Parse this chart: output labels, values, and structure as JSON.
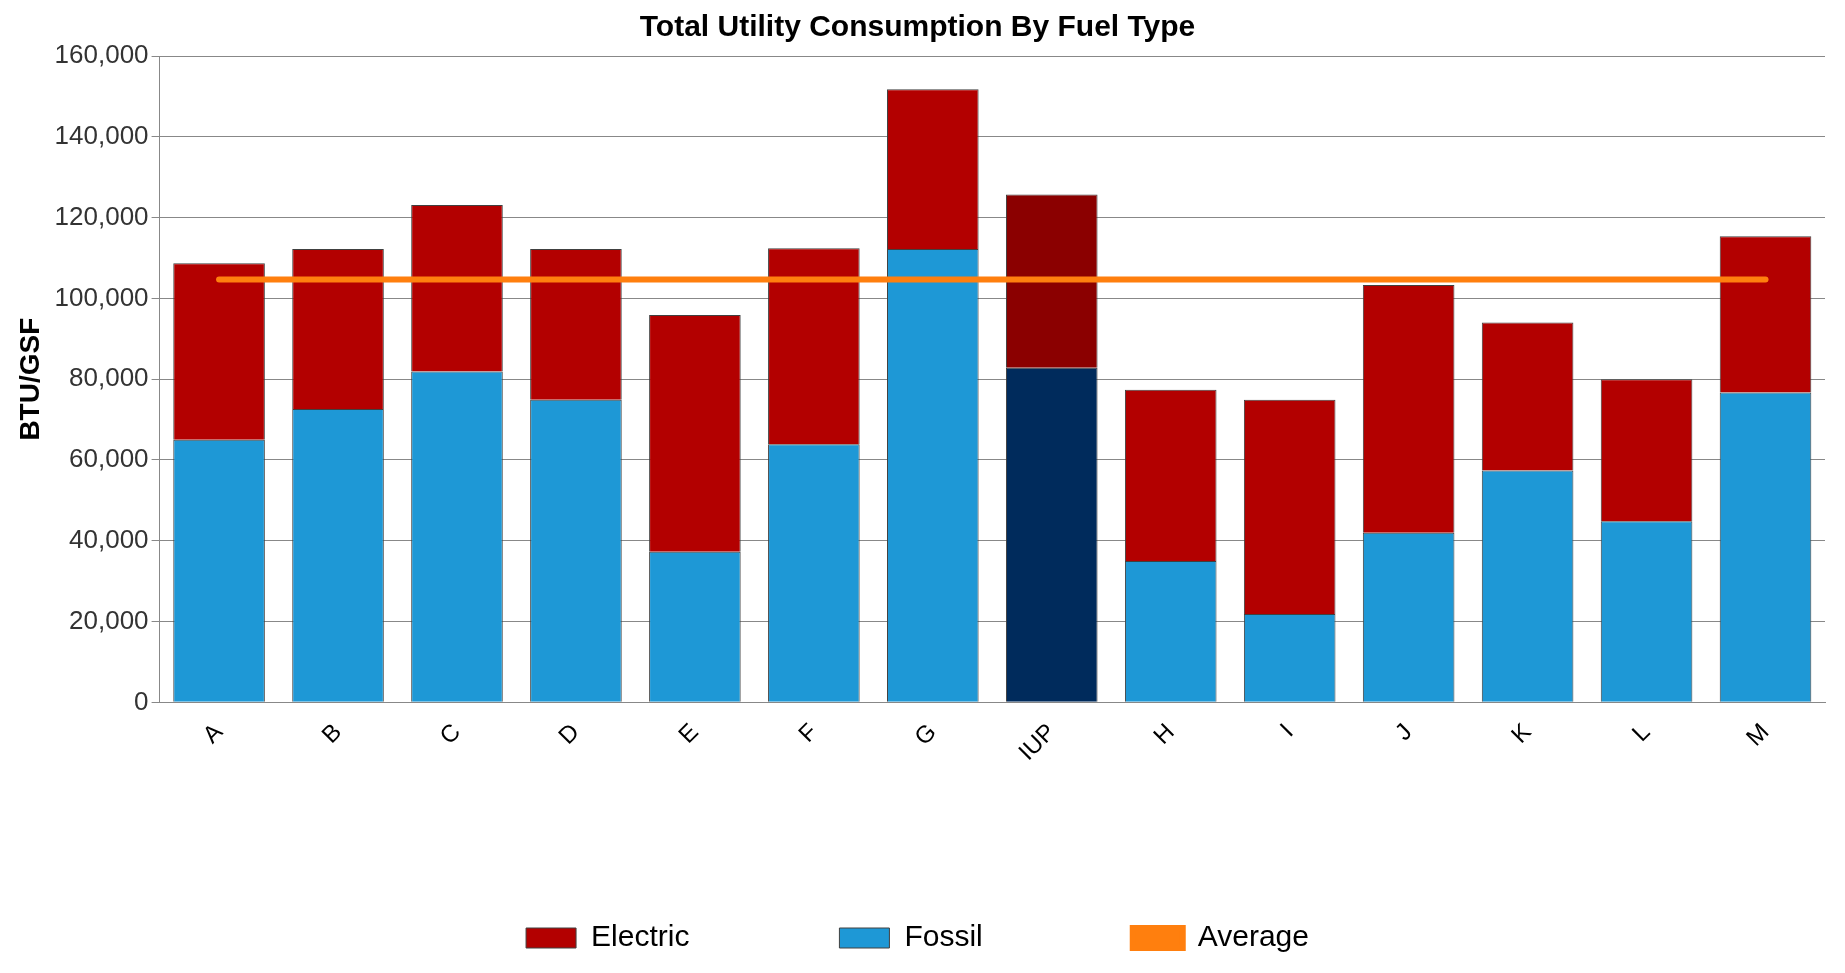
{
  "chart_data": {
    "type": "bar",
    "title": "Total Utility Consumption By Fuel Type",
    "ylabel": "BTU/GSF",
    "categories": [
      "A",
      "B",
      "C",
      "D",
      "E",
      "F",
      "G",
      "IUP",
      "H",
      "I",
      "J",
      "K",
      "L",
      "M"
    ],
    "stacked": true,
    "series": [
      {
        "name": "Fossil",
        "color": "#1e98d6",
        "colors": [
          "#1e98d6",
          "#1e98d6",
          "#1e98d6",
          "#1e98d6",
          "#1e98d6",
          "#1e98d6",
          "#1e98d6",
          "#002b5c",
          "#1e98d6",
          "#1e98d6",
          "#1e98d6",
          "#1e98d6",
          "#1e98d6",
          "#1e98d6"
        ],
        "values": [
          65000,
          72600,
          81900,
          74900,
          37300,
          63900,
          112200,
          82800,
          35000,
          21900,
          42000,
          57400,
          44800,
          76700
        ]
      },
      {
        "name": "Electric",
        "color": "#b30000",
        "colors": [
          "#b30000",
          "#b30000",
          "#b30000",
          "#b30000",
          "#b30000",
          "#b30000",
          "#b30000",
          "#8b0000",
          "#b30000",
          "#b30000",
          "#b30000",
          "#b30000",
          "#b30000",
          "#b30000"
        ],
        "values": [
          43700,
          39600,
          41200,
          37300,
          58600,
          48500,
          39600,
          42900,
          42400,
          53000,
          61300,
          36600,
          35200,
          38700
        ]
      },
      {
        "name": "Average",
        "type": "line",
        "color": "#ff7f0e",
        "values": [
          104700,
          104700,
          104700,
          104700,
          104700,
          104700,
          104700,
          104700,
          104700,
          104700,
          104700,
          104700,
          104700,
          104700
        ]
      }
    ],
    "ylim": [
      0,
      160000
    ],
    "yticks": [
      {
        "value": 0,
        "label": "0"
      },
      {
        "value": 20000,
        "label": "20,000"
      },
      {
        "value": 40000,
        "label": "40,000"
      },
      {
        "value": 60000,
        "label": "60,000"
      },
      {
        "value": 80000,
        "label": "80,000"
      },
      {
        "value": 100000,
        "label": "100,000"
      },
      {
        "value": 120000,
        "label": "120,000"
      },
      {
        "value": 140000,
        "label": "140,000"
      },
      {
        "value": 160000,
        "label": "160,000"
      }
    ],
    "grid": "y",
    "legend": "bottom",
    "marker": "none"
  }
}
